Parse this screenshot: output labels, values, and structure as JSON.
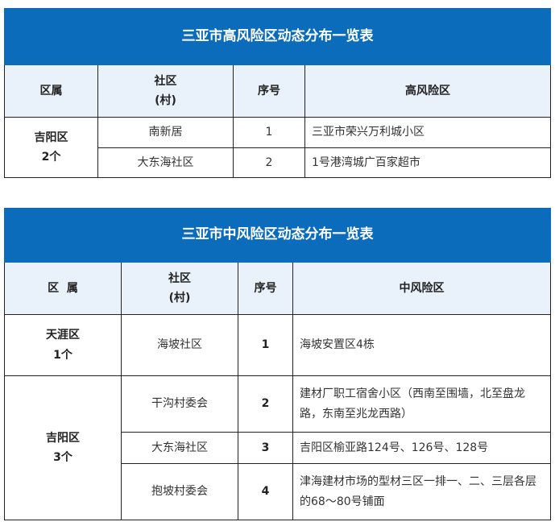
{
  "high_risk_table": {
    "title": "三亚市高风险区动态分布一览表",
    "headers": [
      "区属",
      "社区",
      "(村)",
      "序号",
      "高风险区"
    ],
    "district": {
      "name": "吉阳区",
      "count": "2个"
    },
    "rows": [
      {
        "community": "南新居",
        "no": "1",
        "area": "三亚市荣兴万利城小区"
      },
      {
        "community": "大东海社区",
        "no": "2",
        "area": "1号港湾城广百家超市"
      }
    ]
  },
  "medium_risk_table": {
    "title": "三亚市中风险区动态分布一览表",
    "headers": [
      "区  属",
      "社区",
      "(村)",
      "序号",
      "中风险区"
    ],
    "districts": [
      {
        "name": "天涯区",
        "count": "1个"
      },
      {
        "name": "吉阳区",
        "count": "3个"
      }
    ],
    "rows": [
      {
        "community": "海坡社区",
        "no": "1",
        "area": "海坡安置区4栋"
      },
      {
        "community": "干沟村委会",
        "no": "2",
        "area": "建材厂职工宿舍小区（西南至围墙，北至盘龙路，东南至兆龙西路）"
      },
      {
        "community": "大东海社区",
        "no": "3",
        "area": "吉阳区榆亚路124号、126号、128号"
      },
      {
        "community": "抱坡村委会",
        "no": "4",
        "area": "津海建材市场的型材三区一排一、二、三层各层的68～80号铺面"
      }
    ]
  },
  "colors": {
    "title_bg": "#0b6cbc",
    "header_bg": "#e9f2fa"
  }
}
